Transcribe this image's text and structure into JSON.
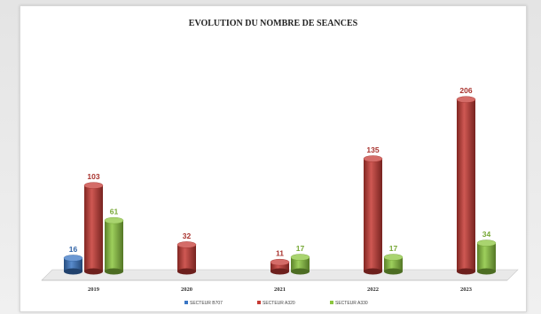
{
  "chart_data": {
    "type": "bar",
    "title": "EVOLUTION  DU NOMBRE DE SEANCES",
    "categories": [
      "2019",
      "2020",
      "2021",
      "2022",
      "2023"
    ],
    "series": [
      {
        "name": "SECTEUR B707",
        "color": "#3a76c4",
        "values": [
          16,
          null,
          null,
          null,
          null
        ]
      },
      {
        "name": "SECTEUR A320",
        "color": "#c63b35",
        "values": [
          103,
          32,
          11,
          135,
          206
        ]
      },
      {
        "name": "SECTEUR A330",
        "color": "#8cc63f",
        "values": [
          61,
          null,
          17,
          17,
          34
        ]
      }
    ],
    "ylim": [
      0,
      220
    ],
    "grid": false,
    "legend_position": "bottom",
    "xlabel": "",
    "ylabel": ""
  }
}
